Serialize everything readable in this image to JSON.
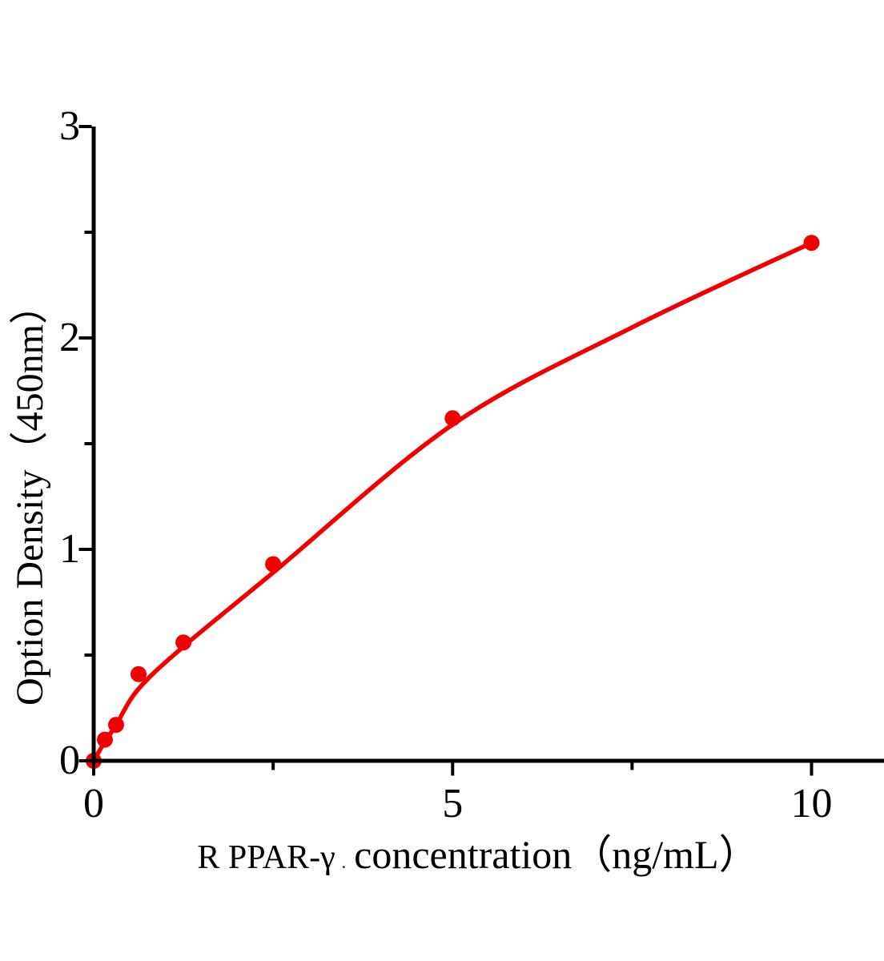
{
  "chart_data": {
    "type": "scatter",
    "title": "",
    "xlabel_prefix": "R PPAR-γ",
    "xlabel_separator": ".",
    "xlabel_main": "concentration（ng/mL）",
    "xlabel_full": "R PPAR-γ . concentration（ng/mL）",
    "ylabel": "Option Density（450nm）",
    "series": [
      {
        "name": "standard-curve-points",
        "x": [
          0,
          0.156,
          0.3125,
          0.625,
          1.25,
          2.5,
          5,
          10
        ],
        "y": [
          0,
          0.1,
          0.17,
          0.41,
          0.56,
          0.93,
          1.62,
          2.45
        ]
      }
    ],
    "curve_fit": [
      [
        0,
        0
      ],
      [
        0.156,
        0.09
      ],
      [
        0.3125,
        0.17
      ],
      [
        0.625,
        0.34
      ],
      [
        1.25,
        0.54
      ],
      [
        2.5,
        0.89
      ],
      [
        5,
        1.59
      ],
      [
        7.5,
        2.05
      ],
      [
        10,
        2.45
      ]
    ],
    "xlim": [
      0,
      11.0
    ],
    "ylim": [
      0,
      3
    ],
    "x_major_ticks": [
      0,
      5,
      10
    ],
    "x_tick_labels": [
      "0",
      "5",
      "10"
    ],
    "x_minor_ticks": [
      2.5,
      7.5
    ],
    "y_major_ticks": [
      0,
      1,
      2,
      3
    ],
    "y_tick_labels": [
      "0",
      "1",
      "2",
      "3"
    ],
    "y_minor_ticks": [
      0.5,
      1.5,
      2.5
    ],
    "grid": false,
    "legend": null,
    "colors": {
      "curve": "#f20000",
      "marker": "#f20000",
      "axis": "#000000",
      "background": "#ffffff"
    }
  }
}
